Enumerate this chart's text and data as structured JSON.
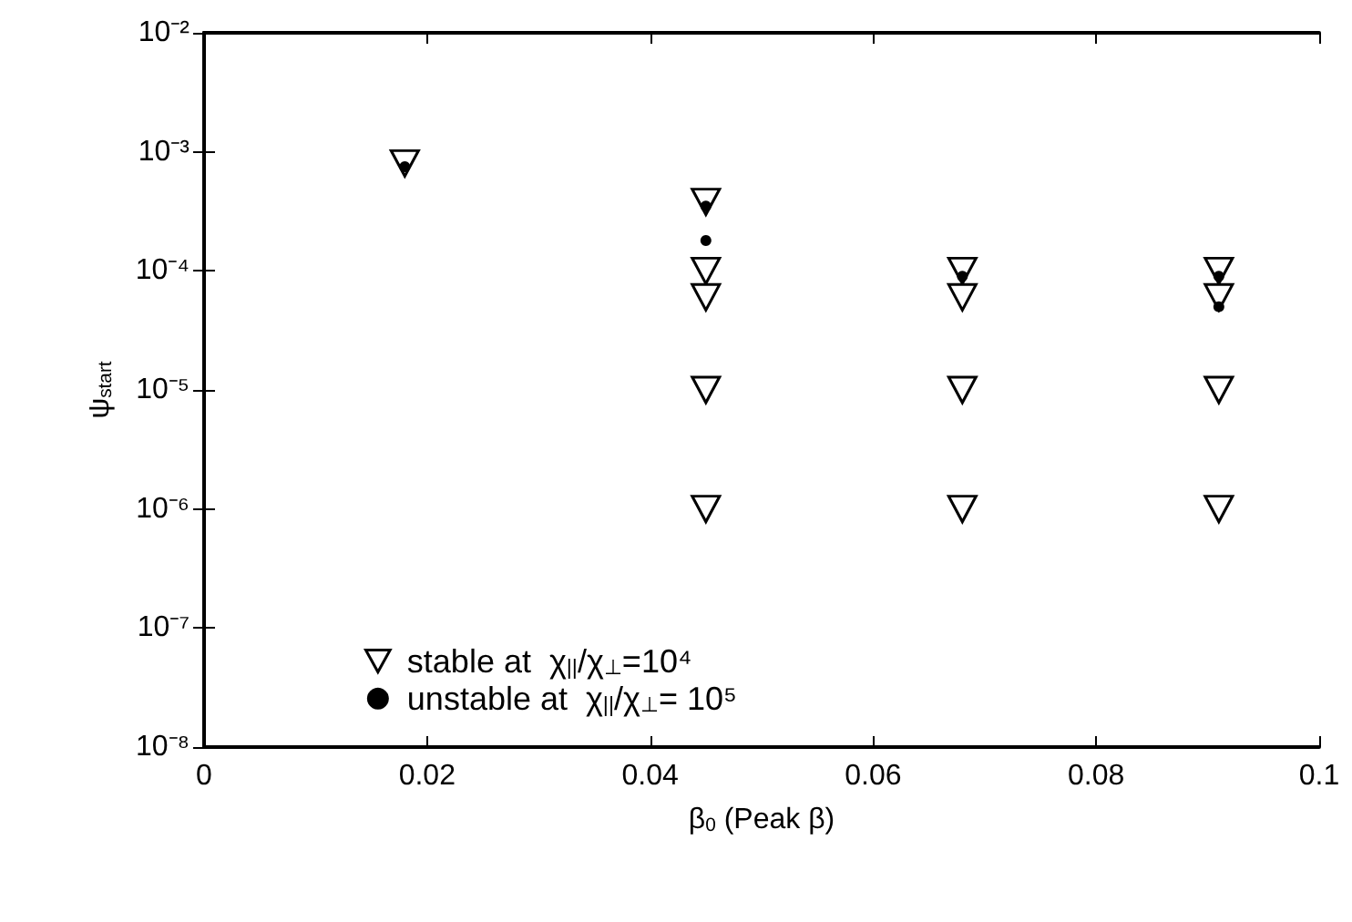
{
  "chart_data": {
    "type": "scatter",
    "xlabel": "β$_{0}$ (Peak β)",
    "ylabel": "ψ$_{start}$",
    "xlim": [
      0,
      0.1
    ],
    "xticks": [
      0,
      0.02,
      0.04,
      0.06,
      0.08,
      0.1
    ],
    "ylim": [
      1e-08,
      0.01
    ],
    "yticks": [
      {
        "value": 1e-08,
        "label": "10⁻⁸"
      },
      {
        "value": 1e-07,
        "label": "10⁻⁷"
      },
      {
        "value": 1e-06,
        "label": "10⁻⁶"
      },
      {
        "value": 1e-05,
        "label": "10⁻⁵"
      },
      {
        "value": 0.0001,
        "label": "10⁻⁴"
      },
      {
        "value": 0.001,
        "label": "10⁻³"
      },
      {
        "value": 0.01,
        "label": "10⁻²"
      }
    ],
    "log": "y",
    "grid": false,
    "legend": "bottom left",
    "series": [
      {
        "name": "stable at  χ$_{||}$/χ$_{⊥}$=10⁴",
        "color": "#000000",
        "marker": "triangle",
        "x": [
          0.018,
          0.045,
          0.045,
          0.045,
          0.045,
          0.045,
          0.068,
          0.068,
          0.068,
          0.068,
          0.091,
          0.091,
          0.091,
          0.091
        ],
        "values": [
          0.0008,
          0.00038,
          0.0001,
          6e-05,
          1e-05,
          1e-06,
          0.0001,
          6e-05,
          1e-05,
          1e-06,
          0.0001,
          6e-05,
          1e-05,
          1e-06
        ]
      },
      {
        "name": "unstable at  χ$_{||}$/χ$_{⊥}$= 10⁵",
        "color": "#000000",
        "marker": "circle",
        "x": [
          0.018,
          0.045,
          0.045,
          0.068,
          0.091,
          0.091
        ],
        "values": [
          0.00075,
          0.00035,
          0.00018,
          9e-05,
          9e-05,
          5e-05
        ]
      }
    ]
  }
}
